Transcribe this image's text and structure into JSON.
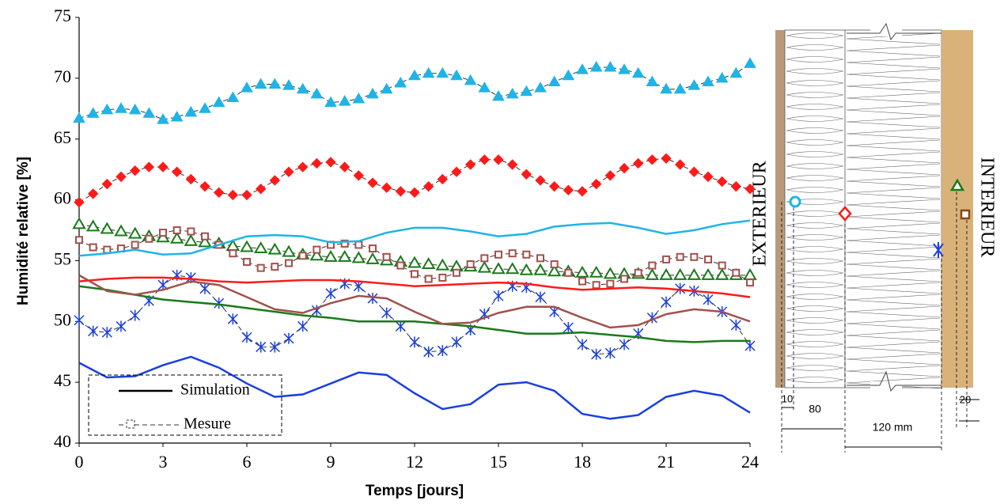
{
  "chart_data": {
    "type": "line",
    "xlabel": "Temps [jours]",
    "ylabel": "Humidité relative [%]",
    "xlim": [
      0,
      24
    ],
    "xticks": [
      0,
      3,
      6,
      9,
      12,
      15,
      18,
      21,
      24
    ],
    "ylim": [
      40,
      75
    ],
    "yticks": [
      40,
      45,
      50,
      55,
      60,
      65,
      70,
      75
    ],
    "grid": false,
    "legend": {
      "position": "lower left",
      "items": [
        "Simulation",
        "Mesure"
      ]
    },
    "series": [
      {
        "style": "measured",
        "marker": "triangle",
        "filled": true,
        "color": "#1fb4e6",
        "x": [
          0,
          0.5,
          1,
          1.5,
          2,
          2.5,
          3,
          3.5,
          4,
          4.5,
          5,
          5.5,
          6,
          6.5,
          7,
          7.5,
          8,
          8.5,
          9,
          9.5,
          10,
          10.5,
          11,
          11.5,
          12,
          12.5,
          13,
          13.5,
          14,
          14.5,
          15,
          15.5,
          16,
          16.5,
          17,
          17.5,
          18,
          18.5,
          19,
          19.5,
          20,
          20.5,
          21,
          21.5,
          22,
          22.5,
          23,
          23.5,
          24
        ],
        "values": [
          66.7,
          67.1,
          67.4,
          67.5,
          67.4,
          67.1,
          66.6,
          66.8,
          67.2,
          67.5,
          68.0,
          68.4,
          69.2,
          69.5,
          69.5,
          69.4,
          69.1,
          68.7,
          68.0,
          68.1,
          68.3,
          68.7,
          69.1,
          69.6,
          70.2,
          70.4,
          70.4,
          70.2,
          69.8,
          69.2,
          68.5,
          68.7,
          68.9,
          69.2,
          69.7,
          70.2,
          70.7,
          70.9,
          70.9,
          70.7,
          70.4,
          69.7,
          69.1,
          69.1,
          69.4,
          69.7,
          70.0,
          70.4,
          71.2
        ]
      },
      {
        "style": "measured",
        "marker": "diamond",
        "filled": true,
        "color": "#ff1a1a",
        "x": [
          0,
          0.5,
          1,
          1.5,
          2,
          2.5,
          3,
          3.5,
          4,
          4.5,
          5,
          5.5,
          6,
          6.5,
          7,
          7.5,
          8,
          8.5,
          9,
          9.5,
          10,
          10.5,
          11,
          11.5,
          12,
          12.5,
          13,
          13.5,
          14,
          14.5,
          15,
          15.5,
          16,
          16.5,
          17,
          17.5,
          18,
          18.5,
          19,
          19.5,
          20,
          20.5,
          21,
          21.5,
          22,
          22.5,
          23,
          23.5,
          24
        ],
        "values": [
          59.8,
          60.5,
          61.3,
          61.9,
          62.4,
          62.7,
          62.7,
          62.3,
          61.7,
          61.1,
          60.6,
          60.4,
          60.4,
          60.9,
          61.6,
          62.3,
          62.7,
          63.0,
          63.1,
          62.7,
          62.0,
          61.4,
          61.0,
          60.7,
          60.6,
          61.1,
          61.7,
          62.3,
          62.9,
          63.3,
          63.3,
          62.9,
          62.1,
          61.6,
          61.1,
          60.8,
          60.7,
          61.3,
          62.0,
          62.6,
          63.0,
          63.3,
          63.4,
          62.9,
          62.3,
          61.9,
          61.5,
          61.1,
          60.9
        ]
      },
      {
        "style": "measured",
        "marker": "triangle",
        "filled": false,
        "color": "#1a7a1a",
        "x": [
          0,
          0.5,
          1,
          1.5,
          2,
          2.5,
          3,
          3.5,
          4,
          4.5,
          5,
          5.5,
          6,
          6.5,
          7,
          7.5,
          8,
          8.5,
          9,
          9.5,
          10,
          10.5,
          11,
          11.5,
          12,
          12.5,
          13,
          13.5,
          14,
          14.5,
          15,
          15.5,
          16,
          16.5,
          17,
          17.5,
          18,
          18.5,
          19,
          19.5,
          20,
          20.5,
          21,
          21.5,
          22,
          22.5,
          23,
          23.5,
          24
        ],
        "values": [
          58.0,
          57.8,
          57.6,
          57.4,
          57.2,
          57.0,
          56.9,
          56.8,
          56.6,
          56.5,
          56.4,
          56.2,
          56.1,
          56.0,
          55.9,
          55.7,
          55.5,
          55.4,
          55.3,
          55.3,
          55.2,
          55.1,
          55.0,
          54.9,
          54.8,
          54.7,
          54.6,
          54.5,
          54.5,
          54.4,
          54.3,
          54.3,
          54.2,
          54.2,
          54.1,
          54.1,
          54.0,
          54.0,
          53.9,
          53.9,
          53.9,
          53.8,
          53.8,
          53.8,
          53.8,
          53.8,
          53.8,
          53.8,
          53.8
        ]
      },
      {
        "style": "measured",
        "marker": "square",
        "filled": false,
        "color": "#a0524d",
        "x": [
          0,
          0.5,
          1,
          1.5,
          2,
          2.5,
          3,
          3.5,
          4,
          4.5,
          5,
          5.5,
          6,
          6.5,
          7,
          7.5,
          8,
          8.5,
          9,
          9.5,
          10,
          10.5,
          11,
          11.5,
          12,
          12.5,
          13,
          13.5,
          14,
          14.5,
          15,
          15.5,
          16,
          16.5,
          17,
          17.5,
          18,
          18.5,
          19,
          19.5,
          20,
          20.5,
          21,
          21.5,
          22,
          22.5,
          23,
          23.5,
          24
        ],
        "values": [
          56.7,
          56.1,
          55.9,
          56.0,
          56.3,
          56.8,
          57.3,
          57.5,
          57.4,
          57.0,
          56.3,
          55.6,
          54.9,
          54.4,
          54.5,
          54.8,
          55.4,
          55.9,
          56.3,
          56.4,
          56.3,
          56.0,
          55.3,
          54.6,
          53.9,
          53.5,
          53.6,
          54.0,
          54.7,
          55.2,
          55.5,
          55.6,
          55.5,
          55.2,
          54.7,
          54.0,
          53.3,
          53.0,
          53.1,
          53.5,
          54.0,
          54.6,
          55.1,
          55.3,
          55.3,
          55.1,
          54.6,
          54.0,
          53.2
        ]
      },
      {
        "style": "measured",
        "marker": "star",
        "filled": false,
        "color": "#1a3fe0",
        "x": [
          0,
          0.5,
          1,
          1.5,
          2,
          2.5,
          3,
          3.5,
          4,
          4.5,
          5,
          5.5,
          6,
          6.5,
          7,
          7.5,
          8,
          8.5,
          9,
          9.5,
          10,
          10.5,
          11,
          11.5,
          12,
          12.5,
          13,
          13.5,
          14,
          14.5,
          15,
          15.5,
          16,
          16.5,
          17,
          17.5,
          18,
          18.5,
          19,
          19.5,
          20,
          20.5,
          21,
          21.5,
          22,
          22.5,
          23,
          23.5,
          24
        ],
        "values": [
          50.1,
          49.2,
          49.1,
          49.6,
          50.5,
          51.7,
          53.0,
          53.8,
          53.6,
          52.7,
          51.5,
          50.2,
          48.7,
          47.9,
          47.9,
          48.6,
          49.6,
          50.9,
          52.3,
          53.1,
          52.9,
          51.9,
          50.7,
          49.6,
          48.3,
          47.5,
          47.6,
          48.3,
          49.3,
          50.6,
          52.1,
          52.9,
          52.8,
          52.0,
          50.8,
          49.5,
          48.1,
          47.3,
          47.4,
          48.1,
          49.0,
          50.3,
          51.6,
          52.7,
          52.5,
          51.8,
          50.8,
          49.7,
          48.0
        ]
      },
      {
        "style": "simulated",
        "color": "#1fb4e6",
        "x": [
          0,
          1,
          2,
          3,
          4,
          5,
          6,
          7,
          8,
          9,
          10,
          11,
          12,
          13,
          14,
          15,
          16,
          17,
          18,
          19,
          20,
          21,
          22,
          23,
          24
        ],
        "values": [
          55.4,
          55.6,
          55.9,
          55.5,
          55.6,
          56.3,
          57.0,
          57.1,
          57.0,
          56.5,
          56.6,
          57.3,
          57.7,
          57.7,
          57.4,
          57.0,
          57.2,
          57.8,
          58.0,
          58.1,
          57.7,
          57.2,
          57.5,
          58.0,
          58.3
        ]
      },
      {
        "style": "simulated",
        "color": "#ff1a1a",
        "x": [
          0,
          1,
          2,
          3,
          4,
          5,
          6,
          7,
          8,
          9,
          10,
          11,
          12,
          13,
          14,
          15,
          16,
          17,
          18,
          19,
          20,
          21,
          22,
          23,
          24
        ],
        "values": [
          53.3,
          53.5,
          53.6,
          53.6,
          53.5,
          53.3,
          53.2,
          53.3,
          53.4,
          53.4,
          53.3,
          53.1,
          52.9,
          53.0,
          53.1,
          53.2,
          53.1,
          52.8,
          52.6,
          52.7,
          52.8,
          52.7,
          52.5,
          52.3,
          52.0
        ]
      },
      {
        "style": "simulated",
        "color": "#1a7a1a",
        "x": [
          0,
          1,
          2,
          3,
          4,
          5,
          6,
          7,
          8,
          9,
          10,
          11,
          12,
          13,
          14,
          15,
          16,
          17,
          18,
          19,
          20,
          21,
          22,
          23,
          24
        ],
        "values": [
          52.9,
          52.6,
          52.2,
          51.8,
          51.6,
          51.4,
          51.1,
          50.8,
          50.5,
          50.3,
          50.0,
          50.0,
          50.0,
          49.8,
          49.6,
          49.3,
          49.0,
          49.0,
          49.1,
          48.9,
          48.7,
          48.4,
          48.3,
          48.4,
          48.4
        ]
      },
      {
        "style": "simulated",
        "color": "#a0524d",
        "x": [
          0,
          1,
          2,
          3,
          4,
          5,
          6,
          7,
          8,
          9,
          10,
          11,
          12,
          13,
          14,
          15,
          16,
          17,
          18,
          19,
          20,
          21,
          22,
          23,
          24
        ],
        "values": [
          53.8,
          52.5,
          52.2,
          52.6,
          53.3,
          53.0,
          52.0,
          51.0,
          50.7,
          51.5,
          52.1,
          51.9,
          50.8,
          49.8,
          49.9,
          50.7,
          51.2,
          51.2,
          50.3,
          49.5,
          49.7,
          50.6,
          51.0,
          50.8,
          50.0
        ]
      },
      {
        "style": "simulated",
        "color": "#1a3fe0",
        "x": [
          0,
          1,
          2,
          3,
          4,
          5,
          6,
          7,
          8,
          9,
          10,
          11,
          12,
          13,
          14,
          15,
          16,
          17,
          18,
          19,
          20,
          21,
          22,
          23,
          24
        ],
        "values": [
          46.6,
          45.4,
          45.5,
          46.4,
          47.1,
          46.2,
          44.9,
          43.8,
          44.0,
          44.9,
          45.8,
          45.6,
          44.1,
          42.8,
          43.2,
          44.8,
          45.0,
          44.3,
          42.4,
          42.0,
          42.3,
          43.8,
          44.3,
          43.9,
          42.5
        ]
      }
    ]
  },
  "diagram": {
    "exterior": "EXTERIEUR",
    "interior": "INTERIEUR",
    "dimensions": [
      "10",
      "80",
      "120 mm",
      "20"
    ]
  }
}
